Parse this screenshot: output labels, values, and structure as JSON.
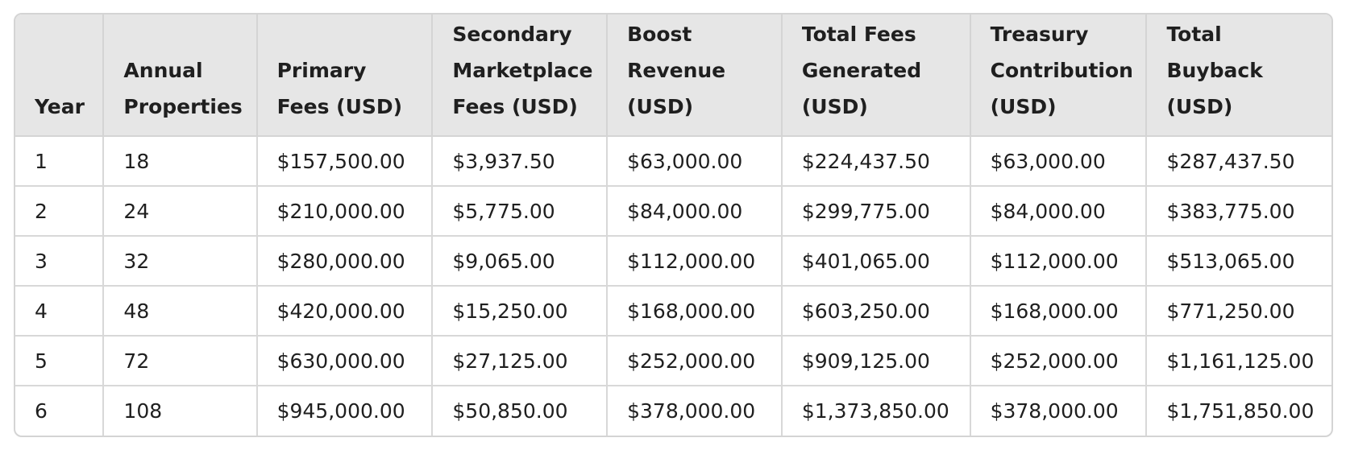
{
  "table": {
    "headers": [
      [
        "Year"
      ],
      [
        "Annual",
        "Properties"
      ],
      [
        "Primary",
        "Fees (USD)"
      ],
      [
        "Secondary",
        "Marketplace",
        "Fees (USD)"
      ],
      [
        "Boost",
        "Revenue",
        "(USD)"
      ],
      [
        "Total Fees",
        "Generated",
        "(USD)"
      ],
      [
        "Treasury",
        "Contribution",
        "(USD)"
      ],
      [
        "Total",
        "Buyback",
        "(USD)"
      ]
    ],
    "rows": [
      [
        "1",
        "18",
        "$157,500.00",
        "$3,937.50",
        "$63,000.00",
        "$224,437.50",
        "$63,000.00",
        "$287,437.50"
      ],
      [
        "2",
        "24",
        "$210,000.00",
        "$5,775.00",
        "$84,000.00",
        "$299,775.00",
        "$84,000.00",
        "$383,775.00"
      ],
      [
        "3",
        "32",
        "$280,000.00",
        "$9,065.00",
        "$112,000.00",
        "$401,065.00",
        "$112,000.00",
        "$513,065.00"
      ],
      [
        "4",
        "48",
        "$420,000.00",
        "$15,250.00",
        "$168,000.00",
        "$603,250.00",
        "$168,000.00",
        "$771,250.00"
      ],
      [
        "5",
        "72",
        "$630,000.00",
        "$27,125.00",
        "$252,000.00",
        "$909,125.00",
        "$252,000.00",
        "$1,161,125.00"
      ],
      [
        "6",
        "108",
        "$945,000.00",
        "$50,850.00",
        "$378,000.00",
        "$1,373,850.00",
        "$378,000.00",
        "$1,751,850.00"
      ]
    ]
  }
}
